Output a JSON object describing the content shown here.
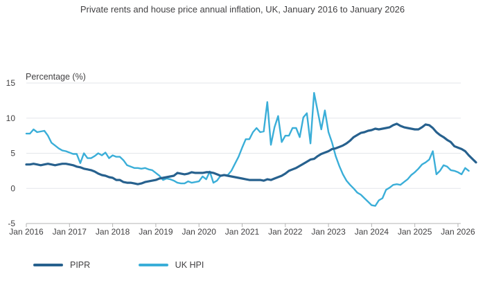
{
  "chart_data": {
    "type": "line",
    "title": "Private rents and house price annual inflation, UK, January 2016 to January 2026",
    "ylabel": "Percentage (%)",
    "xlabel": "",
    "ylim": [
      -5,
      15
    ],
    "yticks": [
      -5,
      0,
      5,
      10,
      15
    ],
    "xticks": [
      "Jan 2016",
      "Jan 2017",
      "Jan 2018",
      "Jan 2019",
      "Jan 2020",
      "Jan 2021",
      "Jan 2022",
      "Jan 2023",
      "Jan 2024",
      "Jan 2025",
      "Jan 2026"
    ],
    "grid": true,
    "legend_position": "bottom-left",
    "x_start": "2016-01",
    "x_end": "2026-01",
    "series": [
      {
        "name": "PIPR",
        "color": "#27618e",
        "values": [
          3.4,
          3.4,
          3.5,
          3.4,
          3.3,
          3.4,
          3.5,
          3.4,
          3.3,
          3.4,
          3.5,
          3.5,
          3.4,
          3.3,
          3.1,
          3.0,
          2.8,
          2.7,
          2.6,
          2.4,
          2.1,
          1.9,
          1.8,
          1.6,
          1.5,
          1.2,
          1.2,
          0.9,
          0.8,
          0.8,
          0.7,
          0.6,
          0.7,
          0.9,
          1.0,
          1.1,
          1.2,
          1.4,
          1.5,
          1.6,
          1.7,
          1.8,
          2.2,
          2.1,
          2.0,
          2.1,
          2.3,
          2.2,
          2.2,
          2.2,
          2.3,
          2.3,
          2.2,
          2.0,
          1.8,
          1.9,
          1.8,
          1.7,
          1.6,
          1.5,
          1.4,
          1.3,
          1.2,
          1.2,
          1.2,
          1.2,
          1.1,
          1.3,
          1.2,
          1.4,
          1.6,
          1.8,
          2.1,
          2.5,
          2.7,
          2.9,
          3.2,
          3.5,
          3.8,
          4.1,
          4.2,
          4.6,
          4.9,
          5.1,
          5.3,
          5.6,
          5.7,
          5.9,
          6.1,
          6.4,
          6.8,
          7.3,
          7.6,
          7.9,
          8.0,
          8.2,
          8.3,
          8.5,
          8.4,
          8.5,
          8.6,
          8.7,
          9.0,
          9.2,
          8.9,
          8.7,
          8.6,
          8.5,
          8.4,
          8.4,
          8.7,
          9.1,
          9.0,
          8.6,
          8.0,
          7.6,
          7.3,
          6.9,
          6.6,
          6.0,
          5.8,
          5.6,
          5.3,
          4.7,
          4.2,
          3.7
        ]
      },
      {
        "name": "UK HPI",
        "color": "#3aaed8",
        "values": [
          7.8,
          7.8,
          8.4,
          8.0,
          8.1,
          8.2,
          7.5,
          6.5,
          6.1,
          5.7,
          5.4,
          5.3,
          5.1,
          4.9,
          4.9,
          3.6,
          5.0,
          4.3,
          4.3,
          4.6,
          5.0,
          4.7,
          5.1,
          4.3,
          4.7,
          4.5,
          4.5,
          4.0,
          3.3,
          3.1,
          2.9,
          2.9,
          2.8,
          2.9,
          2.7,
          2.6,
          2.2,
          1.8,
          1.2,
          1.4,
          1.3,
          1.1,
          0.8,
          0.7,
          0.7,
          1.0,
          0.8,
          0.9,
          1.0,
          1.7,
          1.3,
          2.4,
          0.8,
          1.1,
          1.8,
          1.9,
          1.9,
          2.5,
          3.5,
          4.5,
          5.8,
          7.0,
          7.0,
          8.0,
          8.6,
          8.0,
          8.1,
          12.3,
          6.2,
          8.7,
          10.3,
          6.6,
          7.5,
          7.5,
          8.6,
          8.6,
          7.3,
          10.1,
          10.7,
          6.4,
          13.6,
          11.0,
          8.4,
          11.1,
          8.0,
          6.5,
          4.6,
          3.2,
          2.0,
          1.1,
          0.5,
          0.0,
          -0.6,
          -0.9,
          -1.4,
          -1.9,
          -2.4,
          -2.5,
          -1.7,
          -1.4,
          -0.2,
          0.1,
          0.5,
          0.6,
          0.5,
          0.9,
          1.3,
          1.9,
          2.3,
          2.8,
          3.4,
          3.7,
          4.1,
          5.3,
          2.0,
          2.5,
          3.3,
          3.1,
          2.6,
          2.5,
          2.3,
          2.0,
          2.9,
          2.5
        ]
      }
    ]
  }
}
